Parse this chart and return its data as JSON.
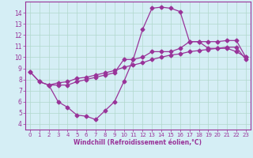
{
  "xlabel": "Windchill (Refroidissement éolien,°C)",
  "line_color": "#993399",
  "bg_color": "#d5eef5",
  "grid_color": "#b0d8cc",
  "line1_x": [
    0,
    1,
    2,
    3,
    4,
    5,
    6,
    7,
    8,
    9,
    10,
    11,
    12,
    13,
    14,
    15,
    16,
    17,
    18,
    19,
    20,
    21,
    22,
    23
  ],
  "line1_y": [
    8.7,
    7.8,
    7.5,
    7.7,
    7.8,
    8.1,
    8.2,
    8.4,
    8.6,
    8.8,
    9.1,
    9.3,
    9.5,
    9.8,
    10.0,
    10.2,
    10.3,
    10.5,
    10.6,
    10.7,
    10.8,
    10.9,
    10.9,
    9.8
  ],
  "line2_x": [
    0,
    1,
    2,
    3,
    4,
    5,
    6,
    7,
    8,
    9,
    10,
    11,
    12,
    13,
    14,
    15,
    16,
    17,
    18,
    19,
    20,
    21,
    22,
    23
  ],
  "line2_y": [
    8.7,
    7.8,
    7.5,
    6.0,
    5.5,
    4.8,
    4.7,
    4.4,
    5.2,
    6.0,
    7.8,
    9.8,
    12.5,
    14.4,
    14.5,
    14.4,
    14.1,
    11.4,
    11.4,
    11.4,
    11.4,
    11.5,
    11.5,
    10.0
  ],
  "line3_x": [
    2,
    3,
    4,
    5,
    6,
    7,
    8,
    9,
    10,
    11,
    12,
    13,
    14,
    15,
    16,
    17,
    18,
    19,
    20,
    21,
    22,
    23
  ],
  "line3_y": [
    7.5,
    7.5,
    7.5,
    7.8,
    8.0,
    8.2,
    8.4,
    8.6,
    9.8,
    9.8,
    10.0,
    10.5,
    10.5,
    10.5,
    10.8,
    11.4,
    11.4,
    10.8,
    10.8,
    10.8,
    10.5,
    10.0
  ],
  "xlim": [
    -0.5,
    23.5
  ],
  "ylim": [
    3.5,
    15.0
  ],
  "yticks": [
    4,
    5,
    6,
    7,
    8,
    9,
    10,
    11,
    12,
    13,
    14
  ],
  "xticks": [
    0,
    1,
    2,
    3,
    4,
    5,
    6,
    7,
    8,
    9,
    10,
    11,
    12,
    13,
    14,
    15,
    16,
    17,
    18,
    19,
    20,
    21,
    22,
    23
  ]
}
